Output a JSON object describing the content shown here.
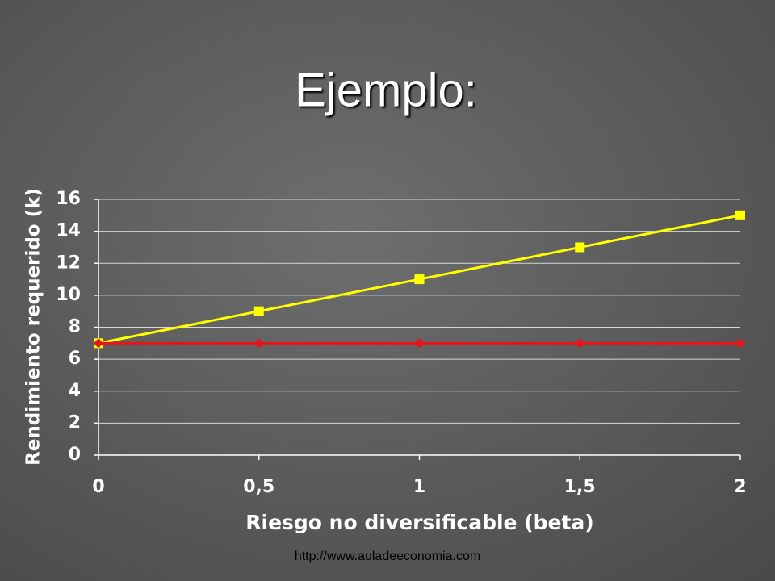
{
  "chart_data": {
    "type": "line",
    "title": "Ejemplo:",
    "x_label": "Riesgo no diversificable (beta)",
    "y_label": "Rendimiento requerido (k)",
    "x": [
      0,
      0.5,
      1,
      1.5,
      2
    ],
    "series": [
      {
        "color": "#ffff00",
        "marker": "square",
        "values": [
          7,
          9,
          11,
          13,
          15
        ]
      },
      {
        "color": "#e8141a",
        "marker": "diamond",
        "values": [
          7,
          7,
          7,
          7,
          7
        ]
      }
    ],
    "xlim": [
      0,
      2
    ],
    "xticks": [
      0,
      {
        "value": 0.5,
        "label": "0,5"
      },
      1,
      {
        "value": 1.5,
        "label": "1,5"
      },
      2
    ],
    "ylim": [
      0,
      16
    ],
    "yticks": [
      0,
      2,
      4,
      6,
      8,
      10,
      12,
      14,
      16
    ],
    "grid": true,
    "footer": "http://www.auladeeconomia.com"
  }
}
